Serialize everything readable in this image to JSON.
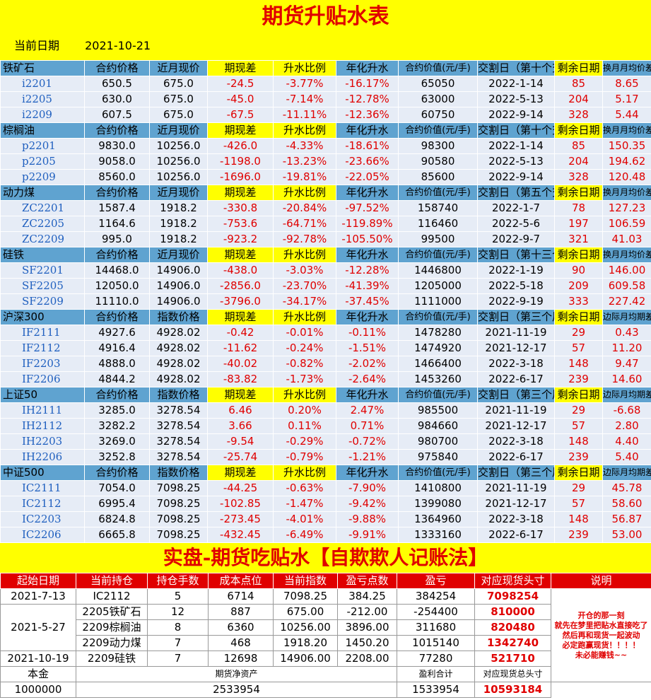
{
  "title": "期货升贴水表",
  "date_label": "当前日期",
  "date_value": "2021-10-21",
  "sections": [
    {
      "name": "铁矿石",
      "headers": [
        "合约价格",
        "近月现价",
        "期现差",
        "升水比例",
        "年化升水",
        "合约价值(元/手)",
        "交割日（第十个交易日）",
        "剩余日期",
        "换月月均价差"
      ],
      "rows": [
        [
          "i2201",
          "650.5",
          "675.0",
          "-24.5",
          "-3.77%",
          "-16.17%",
          "65050",
          "2022-1-14",
          "85",
          "8.65"
        ],
        [
          "i2205",
          "630.0",
          "675.0",
          "-45.0",
          "-7.14%",
          "-12.78%",
          "63000",
          "2022-5-13",
          "204",
          "5.17"
        ],
        [
          "i2209",
          "607.5",
          "675.0",
          "-67.5",
          "-11.11%",
          "-12.36%",
          "60750",
          "2022-9-14",
          "328",
          "5.44"
        ]
      ]
    },
    {
      "name": "棕榈油",
      "headers": [
        "合约价格",
        "近月现价",
        "期现差",
        "升水比例",
        "年化升水",
        "合约价值(元/手)",
        "交割日（第十个交易日）",
        "剩余日期",
        "换月月均价差"
      ],
      "rows": [
        [
          "p2201",
          "9830.0",
          "10256.0",
          "-426.0",
          "-4.33%",
          "-18.61%",
          "98300",
          "2022-1-14",
          "85",
          "150.35"
        ],
        [
          "p2205",
          "9058.0",
          "10256.0",
          "-1198.0",
          "-13.23%",
          "-23.66%",
          "90580",
          "2022-5-13",
          "204",
          "194.62"
        ],
        [
          "p2209",
          "8560.0",
          "10256.0",
          "-1696.0",
          "-19.81%",
          "-22.05%",
          "85600",
          "2022-9-14",
          "328",
          "120.48"
        ]
      ]
    },
    {
      "name": "动力煤",
      "headers": [
        "合约价格",
        "近月现价",
        "期现差",
        "升水比例",
        "年化升水",
        "合约价值(元/手)",
        "交割日（第五个交易日）",
        "剩余日期",
        "换月月均价差"
      ],
      "rows": [
        [
          "ZC2201",
          "1587.4",
          "1918.2",
          "-330.8",
          "-20.84%",
          "-97.52%",
          "158740",
          "2022-1-7",
          "78",
          "127.23"
        ],
        [
          "ZC2205",
          "1164.6",
          "1918.2",
          "-753.6",
          "-64.71%",
          "-119.89%",
          "116460",
          "2022-5-6",
          "197",
          "106.59"
        ],
        [
          "ZC2209",
          "995.0",
          "1918.2",
          "-923.2",
          "-92.78%",
          "-105.50%",
          "99500",
          "2022-9-7",
          "321",
          "41.03"
        ]
      ]
    },
    {
      "name": "硅铁",
      "headers": [
        "合约价格",
        "近月现价",
        "期现差",
        "升水比例",
        "年化升水",
        "合约价值(元/手)",
        "交割日（第十三个交易日）",
        "剩余日期",
        "换月月均价差"
      ],
      "rows": [
        [
          "SF2201",
          "14468.0",
          "14906.0",
          "-438.0",
          "-3.03%",
          "-12.28%",
          "1446800",
          "2022-1-19",
          "90",
          "146.00"
        ],
        [
          "SF2205",
          "12050.0",
          "14906.0",
          "-2856.0",
          "-23.70%",
          "-41.39%",
          "1205000",
          "2022-5-18",
          "209",
          "609.58"
        ],
        [
          "SF2209",
          "11110.0",
          "14906.0",
          "-3796.0",
          "-34.17%",
          "-37.45%",
          "1111000",
          "2022-9-19",
          "333",
          "227.42"
        ]
      ]
    },
    {
      "name": "沪深300",
      "headers": [
        "合约价格",
        "指数价格",
        "期现差",
        "升水比例",
        "年化升水",
        "合约价值(元/手)",
        "交割日（第三个周五）",
        "剩余日期",
        "边际月均期差"
      ],
      "rows": [
        [
          "IF2111",
          "4927.6",
          "4928.02",
          "-0.42",
          "-0.01%",
          "-0.11%",
          "1478280",
          "2021-11-19",
          "29",
          "0.43"
        ],
        [
          "IF2112",
          "4916.4",
          "4928.02",
          "-11.62",
          "-0.24%",
          "-1.51%",
          "1474920",
          "2021-12-17",
          "57",
          "11.20"
        ],
        [
          "IF2203",
          "4888.0",
          "4928.02",
          "-40.02",
          "-0.82%",
          "-2.02%",
          "1466400",
          "2022-3-18",
          "148",
          "9.47"
        ],
        [
          "IF2206",
          "4844.2",
          "4928.02",
          "-83.82",
          "-1.73%",
          "-2.64%",
          "1453260",
          "2022-6-17",
          "239",
          "14.60"
        ]
      ]
    },
    {
      "name": "上证50",
      "headers": [
        "合约价格",
        "指数价格",
        "期现差",
        "升水比例",
        "年化升水",
        "合约价值(元/手)",
        "交割日（第三个周五）",
        "剩余日期",
        "边际月均期差"
      ],
      "rows": [
        [
          "IH2111",
          "3285.0",
          "3278.54",
          "6.46",
          "0.20%",
          "2.47%",
          "985500",
          "2021-11-19",
          "29",
          "-6.68"
        ],
        [
          "IH2112",
          "3282.2",
          "3278.54",
          "3.66",
          "0.11%",
          "0.71%",
          "984660",
          "2021-12-17",
          "57",
          "2.80"
        ],
        [
          "IH2203",
          "3269.0",
          "3278.54",
          "-9.54",
          "-0.29%",
          "-0.72%",
          "980700",
          "2022-3-18",
          "148",
          "4.40"
        ],
        [
          "IH2206",
          "3252.8",
          "3278.54",
          "-25.74",
          "-0.79%",
          "-1.21%",
          "975840",
          "2022-6-17",
          "239",
          "5.40"
        ]
      ]
    },
    {
      "name": "中证500",
      "headers": [
        "合约价格",
        "指数价格",
        "期现差",
        "升水比例",
        "年化升水",
        "合约价值(元/手)",
        "交割日（第三个周五）",
        "剩余日期",
        "边际月均期差"
      ],
      "rows": [
        [
          "IC2111",
          "7054.0",
          "7098.25",
          "-44.25",
          "-0.63%",
          "-7.90%",
          "1410800",
          "2021-11-19",
          "29",
          "45.78"
        ],
        [
          "IC2112",
          "6995.4",
          "7098.25",
          "-102.85",
          "-1.47%",
          "-9.42%",
          "1399080",
          "2021-12-17",
          "57",
          "58.60"
        ],
        [
          "IC2203",
          "6824.8",
          "7098.25",
          "-273.45",
          "-4.01%",
          "-9.88%",
          "1364960",
          "2022-3-18",
          "148",
          "56.87"
        ],
        [
          "IC2206",
          "6665.8",
          "7098.25",
          "-432.45",
          "-6.49%",
          "-9.91%",
          "1333160",
          "2022-6-17",
          "239",
          "53.00"
        ]
      ]
    }
  ],
  "section2_title": "实盘-期货吃贴水【自欺欺人记账法】",
  "portfolio": {
    "headers": [
      "起始日期",
      "当前持仓",
      "持仓手数",
      "成本点位",
      "当前指数",
      "盈亏点数",
      "盈亏",
      "对应现货头寸",
      "说明"
    ],
    "r1": [
      "2021-7-13",
      "IC2112",
      "5",
      "6714",
      "7098.25",
      "384.25",
      "384254",
      "7098254"
    ],
    "r2_date": "2021-5-27",
    "r2": [
      "2205铁矿石",
      "12",
      "887",
      "675.00",
      "-212.00",
      "-254400",
      "810000"
    ],
    "r3": [
      "2209棕榈油",
      "8",
      "6360",
      "10256.00",
      "3896.00",
      "311680",
      "820480"
    ],
    "r4": [
      "2209动力煤",
      "7",
      "468",
      "1918.20",
      "1450.20",
      "1015140",
      "1342740"
    ],
    "r5": [
      "2021-10-19",
      "2209硅铁",
      "7",
      "12698",
      "14906.00",
      "2208.00",
      "77280",
      "521710"
    ],
    "note": "开仓的那一刻\n就先在梦里把贴水直接吃了\n然后再和现货一起波动\n必定跑赢现货！！！！\n未必能赚钱~~",
    "footer_labels": [
      "本金",
      "期货净资产",
      "盈利合计",
      "对应现货总头寸"
    ],
    "footer_values": [
      "1000000",
      "2533954",
      "1533954",
      "10593184"
    ]
  }
}
